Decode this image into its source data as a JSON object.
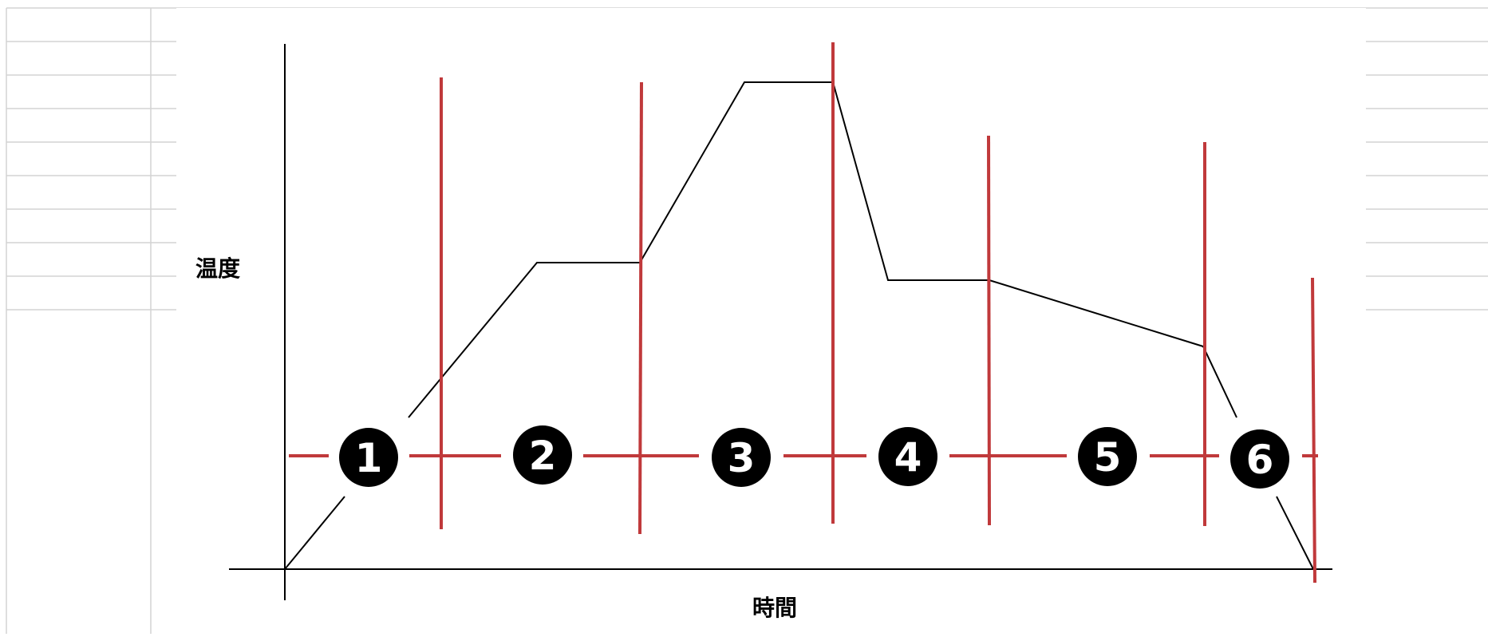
{
  "diagram": {
    "y_axis_label": "温度",
    "x_axis_label": "時間",
    "phases": [
      {
        "number": "1"
      },
      {
        "number": "2"
      },
      {
        "number": "3"
      },
      {
        "number": "4"
      },
      {
        "number": "5"
      },
      {
        "number": "6"
      }
    ],
    "colors": {
      "divider": "#c0393b",
      "profile_line": "#000000",
      "badge": "#000000",
      "badge_text": "#ffffff",
      "gridline": "#d4d4d4"
    }
  }
}
